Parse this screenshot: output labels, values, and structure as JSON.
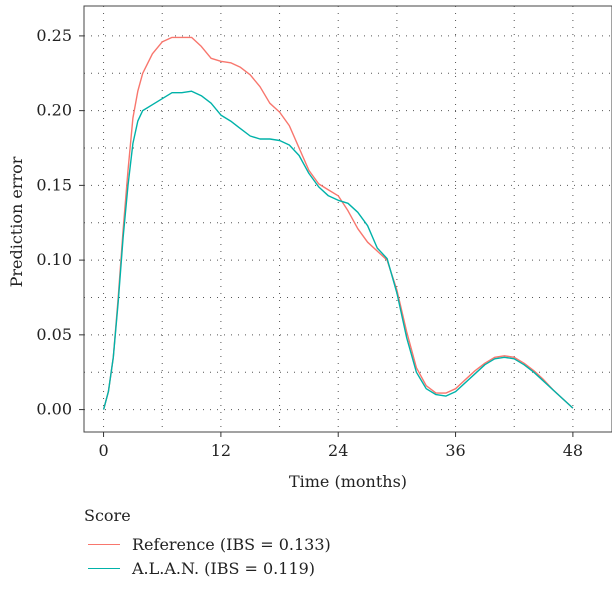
{
  "chart_data": {
    "type": "line",
    "xlabel": "Time (months)",
    "ylabel": "Prediction error",
    "xlim": [
      -2,
      52
    ],
    "ylim": [
      -0.015,
      0.27
    ],
    "xticks": [
      0,
      12,
      24,
      36,
      48
    ],
    "yticks": [
      0.0,
      0.05,
      0.1,
      0.15,
      0.2,
      0.25
    ],
    "ytick_labels": [
      "0.00",
      "0.05",
      "0.10",
      "0.15",
      "0.20",
      "0.25"
    ],
    "grid": "dotted",
    "legend": {
      "title": "Score",
      "placement": "bottom"
    },
    "series": [
      {
        "name": "Reference (IBS = 0.133)",
        "color": "#f8766d",
        "x": [
          0,
          0.5,
          1,
          1.5,
          2,
          2.5,
          3,
          3.5,
          4,
          5,
          6,
          7,
          8,
          9,
          10,
          11,
          12,
          13,
          14,
          15,
          16,
          17,
          18,
          19,
          20,
          21,
          22,
          23,
          24,
          25,
          26,
          27,
          28,
          29,
          30,
          31,
          32,
          33,
          34,
          35,
          36,
          37,
          38,
          39,
          40,
          41,
          42,
          43,
          44,
          45,
          46,
          47,
          48
        ],
        "values": [
          0.0,
          0.012,
          0.035,
          0.075,
          0.12,
          0.16,
          0.195,
          0.213,
          0.225,
          0.238,
          0.246,
          0.249,
          0.249,
          0.249,
          0.243,
          0.235,
          0.233,
          0.232,
          0.229,
          0.224,
          0.216,
          0.205,
          0.199,
          0.19,
          0.175,
          0.16,
          0.151,
          0.147,
          0.143,
          0.133,
          0.121,
          0.112,
          0.106,
          0.1,
          0.08,
          0.052,
          0.028,
          0.016,
          0.011,
          0.011,
          0.014,
          0.02,
          0.026,
          0.031,
          0.035,
          0.036,
          0.035,
          0.031,
          0.026,
          0.02,
          0.013,
          0.007,
          0.001
        ]
      },
      {
        "name": "A.L.A.N. (IBS = 0.119)",
        "color": "#00b2a9",
        "x": [
          0,
          0.5,
          1,
          1.5,
          2,
          2.5,
          3,
          3.5,
          4,
          5,
          6,
          7,
          8,
          9,
          10,
          11,
          12,
          13,
          14,
          15,
          16,
          17,
          18,
          19,
          20,
          21,
          22,
          23,
          24,
          25,
          26,
          27,
          28,
          29,
          30,
          31,
          32,
          33,
          34,
          35,
          36,
          37,
          38,
          39,
          40,
          41,
          42,
          43,
          44,
          45,
          46,
          47,
          48
        ],
        "values": [
          0.0,
          0.012,
          0.035,
          0.072,
          0.115,
          0.15,
          0.178,
          0.193,
          0.2,
          0.204,
          0.208,
          0.212,
          0.212,
          0.213,
          0.21,
          0.205,
          0.197,
          0.193,
          0.188,
          0.183,
          0.181,
          0.181,
          0.18,
          0.177,
          0.17,
          0.158,
          0.149,
          0.143,
          0.14,
          0.138,
          0.132,
          0.123,
          0.108,
          0.101,
          0.078,
          0.048,
          0.025,
          0.014,
          0.01,
          0.009,
          0.012,
          0.018,
          0.024,
          0.03,
          0.034,
          0.035,
          0.034,
          0.03,
          0.025,
          0.019,
          0.013,
          0.007,
          0.001
        ]
      }
    ]
  }
}
